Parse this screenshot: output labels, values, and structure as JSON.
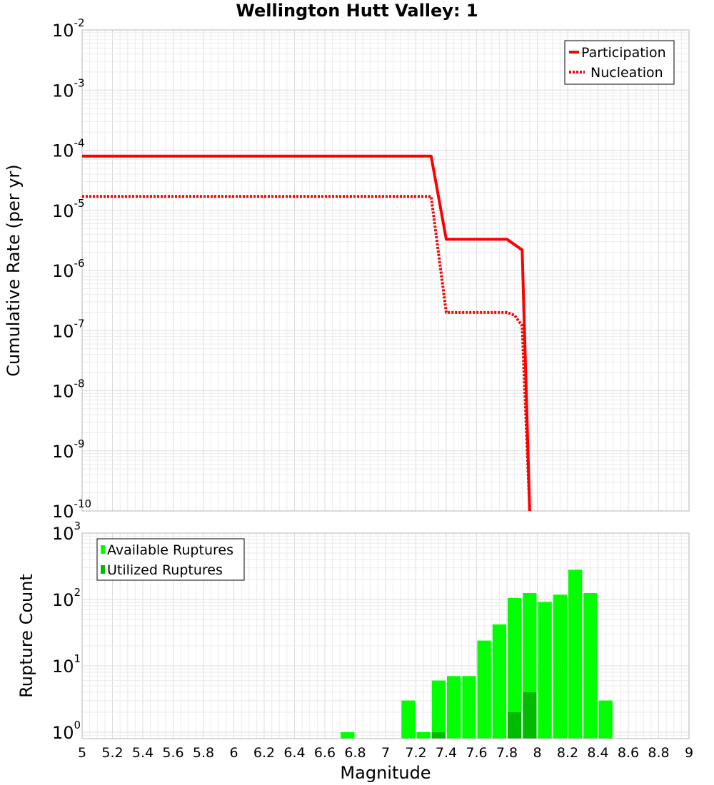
{
  "chart_data": [
    {
      "type": "line",
      "title": "Wellington Hutt Valley: 1",
      "xlabel": "Magnitude",
      "ylabel": "Cumulative Rate (per yr)",
      "xlim": [
        5,
        9
      ],
      "ylim": [
        1e-10,
        0.01
      ],
      "yscale": "log",
      "ytick_exponents": [
        -2,
        -3,
        -4,
        -5,
        -6,
        -7,
        -8,
        -9,
        -10
      ],
      "grid": true,
      "legend_position": "top-right",
      "series": [
        {
          "name": "Participation",
          "color": "#ff0000",
          "style": "solid",
          "x": [
            5.0,
            7.3,
            7.4,
            7.8,
            7.9,
            7.95
          ],
          "y": [
            8e-05,
            8e-05,
            3.3e-06,
            3.3e-06,
            2.2e-06,
            1e-10
          ]
        },
        {
          "name": "Nucleation",
          "color": "#ff0000",
          "style": "dotted",
          "x": [
            5.0,
            7.3,
            7.4,
            7.8,
            7.85,
            7.9,
            7.95
          ],
          "y": [
            1.7e-05,
            1.7e-05,
            2e-07,
            2e-07,
            1.8e-07,
            1.2e-07,
            1e-10
          ]
        }
      ]
    },
    {
      "type": "bar",
      "xlabel": "Magnitude",
      "ylabel": "Rupture Count",
      "xlim": [
        5,
        9
      ],
      "ylim": [
        0.8,
        1000
      ],
      "yscale": "log",
      "ytick_exponents": [
        3,
        2,
        1,
        0
      ],
      "xticks": [
        "5",
        "5.2",
        "5.4",
        "5.6",
        "5.8",
        "6",
        "6.2",
        "6.4",
        "6.6",
        "6.8",
        "7",
        "7.2",
        "7.4",
        "7.6",
        "7.8",
        "8",
        "8.2",
        "8.4",
        "8.6",
        "8.8",
        "9"
      ],
      "grid": true,
      "legend_position": "top-left",
      "bin_width": 0.1,
      "series": [
        {
          "name": "Available Ruptures",
          "color": "#00ff00",
          "x": [
            6.75,
            7.15,
            7.25,
            7.35,
            7.45,
            7.55,
            7.65,
            7.75,
            7.85,
            7.95,
            8.05,
            8.15,
            8.25,
            8.35,
            8.45
          ],
          "values": [
            1,
            3,
            1,
            6,
            7,
            7,
            24,
            42,
            105,
            125,
            92,
            118,
            280,
            125,
            3
          ]
        },
        {
          "name": "Utilized Ruptures",
          "color": "#00bb00",
          "x": [
            7.35,
            7.85,
            7.95
          ],
          "values": [
            1,
            2,
            4
          ]
        }
      ]
    }
  ]
}
